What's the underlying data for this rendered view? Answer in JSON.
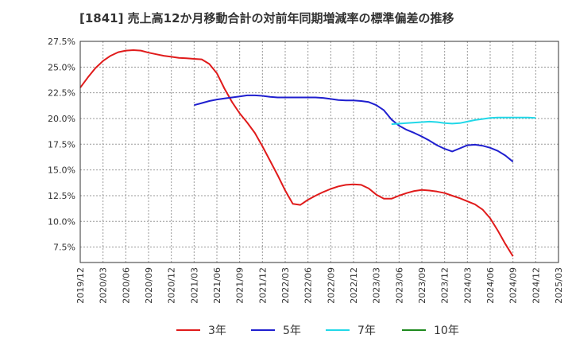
{
  "chart_data": {
    "type": "line",
    "title": "[1841]  売上高12か月移動合計の対前年同期増減率の標準偏差の推移",
    "xlabel": "",
    "ylabel": "",
    "ylim": [
      6.0,
      27.5
    ],
    "yticks": [
      7.5,
      10.0,
      12.5,
      15.0,
      17.5,
      20.0,
      22.5,
      25.0,
      27.5
    ],
    "ytick_labels": [
      "7.5%",
      "10.0%",
      "12.5%",
      "15.0%",
      "17.5%",
      "20.0%",
      "22.5%",
      "25.0%",
      "27.5%"
    ],
    "xticks": [
      "2019/12",
      "2020/03",
      "2020/06",
      "2020/09",
      "2020/12",
      "2021/03",
      "2021/06",
      "2021/09",
      "2021/12",
      "2022/03",
      "2022/06",
      "2022/09",
      "2022/12",
      "2023/03",
      "2023/06",
      "2023/09",
      "2023/12",
      "2024/03",
      "2024/06",
      "2024/09",
      "2024/12",
      "2025/03"
    ],
    "grid": true,
    "legend_position": "bottom",
    "series": [
      {
        "name": "3年",
        "color": "#e01b1b",
        "values": [
          [
            0,
            23.0
          ],
          [
            1,
            24.0
          ],
          [
            2,
            24.9
          ],
          [
            3,
            25.6
          ],
          [
            4,
            26.1
          ],
          [
            5,
            26.45
          ],
          [
            6,
            26.6
          ],
          [
            7,
            26.65
          ],
          [
            8,
            26.6
          ],
          [
            9,
            26.4
          ],
          [
            10,
            26.25
          ],
          [
            11,
            26.1
          ],
          [
            12,
            26.0
          ],
          [
            13,
            25.9
          ],
          [
            14,
            25.85
          ],
          [
            15,
            25.8
          ],
          [
            16,
            25.75
          ],
          [
            17,
            25.3
          ],
          [
            18,
            24.4
          ],
          [
            19,
            22.9
          ],
          [
            20,
            21.6
          ],
          [
            21,
            20.5
          ],
          [
            22,
            19.6
          ],
          [
            23,
            18.6
          ],
          [
            24,
            17.3
          ],
          [
            25,
            15.9
          ],
          [
            26,
            14.5
          ],
          [
            27,
            13.0
          ],
          [
            28,
            11.7
          ],
          [
            29,
            11.6
          ],
          [
            30,
            12.1
          ],
          [
            31,
            12.5
          ],
          [
            32,
            12.85
          ],
          [
            33,
            13.15
          ],
          [
            34,
            13.4
          ],
          [
            35,
            13.55
          ],
          [
            36,
            13.6
          ],
          [
            37,
            13.55
          ],
          [
            38,
            13.2
          ],
          [
            39,
            12.6
          ],
          [
            40,
            12.2
          ],
          [
            41,
            12.2
          ],
          [
            42,
            12.5
          ],
          [
            43,
            12.75
          ],
          [
            44,
            12.95
          ],
          [
            45,
            13.05
          ],
          [
            46,
            13.0
          ],
          [
            47,
            12.9
          ],
          [
            48,
            12.75
          ],
          [
            49,
            12.5
          ],
          [
            50,
            12.25
          ],
          [
            51,
            11.95
          ],
          [
            52,
            11.65
          ],
          [
            53,
            11.15
          ],
          [
            54,
            10.3
          ],
          [
            55,
            9.1
          ],
          [
            56,
            7.8
          ],
          [
            57,
            6.6
          ]
        ]
      },
      {
        "name": "5年",
        "color": "#1f1fcf",
        "values": [
          [
            15,
            21.3
          ],
          [
            16,
            21.5
          ],
          [
            17,
            21.7
          ],
          [
            18,
            21.85
          ],
          [
            19,
            21.95
          ],
          [
            20,
            22.05
          ],
          [
            21,
            22.15
          ],
          [
            22,
            22.25
          ],
          [
            23,
            22.25
          ],
          [
            24,
            22.2
          ],
          [
            25,
            22.1
          ],
          [
            26,
            22.05
          ],
          [
            27,
            22.05
          ],
          [
            28,
            22.05
          ],
          [
            29,
            22.05
          ],
          [
            30,
            22.05
          ],
          [
            31,
            22.05
          ],
          [
            32,
            22.0
          ],
          [
            33,
            21.9
          ],
          [
            34,
            21.8
          ],
          [
            35,
            21.75
          ],
          [
            36,
            21.75
          ],
          [
            37,
            21.7
          ],
          [
            38,
            21.6
          ],
          [
            39,
            21.3
          ],
          [
            40,
            20.8
          ],
          [
            41,
            19.9
          ],
          [
            42,
            19.3
          ],
          [
            43,
            18.9
          ],
          [
            44,
            18.6
          ],
          [
            45,
            18.25
          ],
          [
            46,
            17.85
          ],
          [
            47,
            17.4
          ],
          [
            48,
            17.05
          ],
          [
            49,
            16.8
          ],
          [
            50,
            17.1
          ],
          [
            51,
            17.4
          ],
          [
            52,
            17.45
          ],
          [
            53,
            17.35
          ],
          [
            54,
            17.15
          ],
          [
            55,
            16.85
          ],
          [
            56,
            16.4
          ],
          [
            57,
            15.8
          ]
        ]
      },
      {
        "name": "7年",
        "color": "#22d8e8",
        "values": [
          [
            41,
            19.45
          ],
          [
            42,
            19.5
          ],
          [
            43,
            19.55
          ],
          [
            44,
            19.6
          ],
          [
            45,
            19.65
          ],
          [
            46,
            19.7
          ],
          [
            47,
            19.65
          ],
          [
            48,
            19.55
          ],
          [
            49,
            19.5
          ],
          [
            50,
            19.55
          ],
          [
            51,
            19.7
          ],
          [
            52,
            19.85
          ],
          [
            53,
            19.95
          ],
          [
            54,
            20.05
          ],
          [
            55,
            20.1
          ],
          [
            56,
            20.1
          ],
          [
            57,
            20.1
          ],
          [
            58,
            20.1
          ],
          [
            59,
            20.1
          ],
          [
            60,
            20.05
          ]
        ]
      },
      {
        "name": "10年",
        "color": "#1e8a1e",
        "values": []
      }
    ]
  }
}
